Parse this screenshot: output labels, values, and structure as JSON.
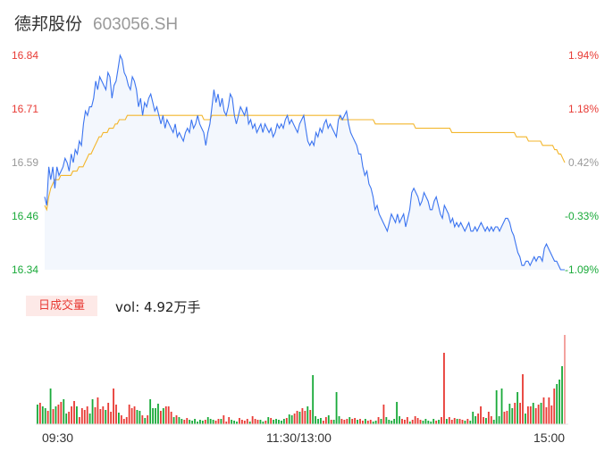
{
  "header": {
    "name": "德邦股份",
    "code": "603056.SH"
  },
  "volume_panel": {
    "tab_label": "日成交量",
    "vol_text": "vol: 4.92万手"
  },
  "colors": {
    "price_line": "#3b74f0",
    "avg_line": "#f3b62c",
    "up": "#e83b35",
    "down": "#1aaa3a",
    "flat": "#999999",
    "area_fill": "#f3f7fd"
  },
  "chart_data": [
    {
      "type": "line",
      "y_left_ticks": [
        "16.84",
        "16.71",
        "16.59",
        "16.46",
        "16.34"
      ],
      "y_right_ticks": [
        "1.94%",
        "1.18%",
        "0.42%",
        "-0.33%",
        "-1.09%"
      ],
      "ylim": [
        16.34,
        16.84
      ],
      "prev_close": 16.52,
      "x_ticks": [
        "09:30",
        "11:30/13:00",
        "15:00"
      ],
      "series": [
        {
          "key": "price",
          "values": [
            16.51,
            16.49,
            16.58,
            16.55,
            16.58,
            16.53,
            16.58,
            16.56,
            16.57,
            16.58,
            16.6,
            16.59,
            16.57,
            16.61,
            16.59,
            16.62,
            16.61,
            16.64,
            16.63,
            16.68,
            16.71,
            16.7,
            16.72,
            16.72,
            16.74,
            16.78,
            16.76,
            16.79,
            16.78,
            16.77,
            16.76,
            16.8,
            16.79,
            16.74,
            16.77,
            16.78,
            16.81,
            16.84,
            16.83,
            16.8,
            16.79,
            16.77,
            16.76,
            16.79,
            16.78,
            16.76,
            16.72,
            16.74,
            16.7,
            16.73,
            16.72,
            16.74,
            16.75,
            16.73,
            16.71,
            16.72,
            16.7,
            16.68,
            16.7,
            16.67,
            16.69,
            16.68,
            16.67,
            16.66,
            16.68,
            16.65,
            16.66,
            16.65,
            16.64,
            16.66,
            16.67,
            16.66,
            16.69,
            16.67,
            16.68,
            16.7,
            16.68,
            16.67,
            16.66,
            16.63,
            16.66,
            16.68,
            16.72,
            16.76,
            16.73,
            16.75,
            16.72,
            16.74,
            16.71,
            16.7,
            16.72,
            16.75,
            16.74,
            16.7,
            16.68,
            16.7,
            16.72,
            16.71,
            16.7,
            16.72,
            16.68,
            16.69,
            16.67,
            16.68,
            16.66,
            16.67,
            16.68,
            16.66,
            16.68,
            16.67,
            16.66,
            16.67,
            16.65,
            16.66,
            16.68,
            16.67,
            16.68,
            16.67,
            16.69,
            16.7,
            16.68,
            16.69,
            16.68,
            16.67,
            16.66,
            16.68,
            16.69,
            16.7,
            16.67,
            16.64,
            16.63,
            16.64,
            16.63,
            16.66,
            16.65,
            16.67,
            16.66,
            16.68,
            16.69,
            16.67,
            16.68,
            16.67,
            16.66,
            16.65,
            16.69,
            16.7,
            16.69,
            16.7,
            16.71,
            16.68,
            16.66,
            16.65,
            16.64,
            16.63,
            16.61,
            16.61,
            16.58,
            16.56,
            16.57,
            16.54,
            16.53,
            16.51,
            16.48,
            16.49,
            16.47,
            16.46,
            16.45,
            16.44,
            16.43,
            16.45,
            16.47,
            16.46,
            16.45,
            16.47,
            16.45,
            16.46,
            16.47,
            16.44,
            16.46,
            16.48,
            16.52,
            16.53,
            16.52,
            16.51,
            16.49,
            16.5,
            16.52,
            16.51,
            16.5,
            16.48,
            16.48,
            16.5,
            16.51,
            16.49,
            16.47,
            16.46,
            16.49,
            16.48,
            16.47,
            16.45,
            16.46,
            16.44,
            16.45,
            16.44,
            16.45,
            16.44,
            16.43,
            16.44,
            16.45,
            16.43,
            16.43,
            16.44,
            16.43,
            16.44,
            16.45,
            16.44,
            16.43,
            16.44,
            16.43,
            16.44,
            16.43,
            16.44,
            16.44,
            16.43,
            16.44,
            16.45,
            16.46,
            16.46,
            16.45,
            16.43,
            16.42,
            16.4,
            16.38,
            16.37,
            16.35,
            16.35,
            16.36,
            16.36,
            16.35,
            16.36,
            16.37,
            16.36,
            16.37,
            16.37,
            16.36,
            16.39,
            16.4,
            16.39,
            16.38,
            16.37,
            16.36,
            16.36,
            16.35,
            16.34,
            16.34,
            16.34
          ]
        },
        {
          "key": "average",
          "values": [
            16.49,
            16.48,
            16.51,
            16.53,
            16.54,
            16.55,
            16.55,
            16.55,
            16.56,
            16.56,
            16.56,
            16.56,
            16.56,
            16.56,
            16.57,
            16.57,
            16.57,
            16.58,
            16.58,
            16.58,
            16.59,
            16.6,
            16.61,
            16.61,
            16.62,
            16.63,
            16.64,
            16.65,
            16.65,
            16.66,
            16.66,
            16.66,
            16.67,
            16.67,
            16.67,
            16.68,
            16.68,
            16.69,
            16.69,
            16.69,
            16.69,
            16.7,
            16.7,
            16.7,
            16.7,
            16.7,
            16.7,
            16.7,
            16.7,
            16.7,
            16.7,
            16.7,
            16.7,
            16.7,
            16.7,
            16.7,
            16.7,
            16.7,
            16.7,
            16.7,
            16.7,
            16.7,
            16.7,
            16.7,
            16.7,
            16.7,
            16.7,
            16.7,
            16.7,
            16.7,
            16.7,
            16.7,
            16.7,
            16.7,
            16.7,
            16.7,
            16.7,
            16.7,
            16.7,
            16.69,
            16.69,
            16.69,
            16.69,
            16.7,
            16.7,
            16.7,
            16.7,
            16.7,
            16.7,
            16.7,
            16.7,
            16.7,
            16.7,
            16.7,
            16.7,
            16.7,
            16.7,
            16.7,
            16.7,
            16.7,
            16.7,
            16.7,
            16.7,
            16.7,
            16.7,
            16.7,
            16.7,
            16.7,
            16.7,
            16.7,
            16.7,
            16.7,
            16.7,
            16.7,
            16.7,
            16.7,
            16.7,
            16.7,
            16.7,
            16.7,
            16.7,
            16.7,
            16.7,
            16.7,
            16.7,
            16.7,
            16.7,
            16.7,
            16.7,
            16.7,
            16.7,
            16.7,
            16.7,
            16.7,
            16.7,
            16.7,
            16.7,
            16.7,
            16.7,
            16.7,
            16.7,
            16.7,
            16.7,
            16.7,
            16.7,
            16.7,
            16.7,
            16.69,
            16.69,
            16.69,
            16.69,
            16.69,
            16.69,
            16.69,
            16.69,
            16.69,
            16.69,
            16.69,
            16.69,
            16.69,
            16.69,
            16.69,
            16.69,
            16.69,
            16.68,
            16.68,
            16.68,
            16.68,
            16.68,
            16.68,
            16.68,
            16.68,
            16.68,
            16.68,
            16.68,
            16.68,
            16.68,
            16.68,
            16.68,
            16.68,
            16.68,
            16.68,
            16.68,
            16.68,
            16.67,
            16.67,
            16.67,
            16.67,
            16.67,
            16.67,
            16.67,
            16.67,
            16.67,
            16.67,
            16.67,
            16.67,
            16.67,
            16.67,
            16.67,
            16.67,
            16.67,
            16.67,
            16.66,
            16.66,
            16.66,
            16.66,
            16.66,
            16.66,
            16.66,
            16.66,
            16.66,
            16.66,
            16.66,
            16.66,
            16.66,
            16.66,
            16.66,
            16.66,
            16.66,
            16.66,
            16.66,
            16.66,
            16.66,
            16.66,
            16.66,
            16.66,
            16.66,
            16.66,
            16.66,
            16.66,
            16.66,
            16.66,
            16.66,
            16.66,
            16.65,
            16.65,
            16.65,
            16.65,
            16.65,
            16.65,
            16.64,
            16.64,
            16.64,
            16.64,
            16.64,
            16.64,
            16.64,
            16.63,
            16.63,
            16.63,
            16.63,
            16.63,
            16.63,
            16.62,
            16.62,
            16.61,
            16.61,
            16.6,
            16.59
          ]
        }
      ]
    },
    {
      "type": "bar",
      "ylim": [
        0,
        100
      ],
      "values": [
        22,
        24,
        20,
        18,
        15,
        40,
        17,
        20,
        22,
        25,
        28,
        12,
        14,
        20,
        26,
        20,
        8,
        18,
        16,
        20,
        12,
        28,
        19,
        30,
        17,
        20,
        16,
        24,
        14,
        40,
        22,
        13,
        10,
        6,
        8,
        22,
        18,
        20,
        16,
        15,
        10,
        7,
        10,
        28,
        18,
        18,
        23,
        15,
        18,
        20,
        20,
        14,
        8,
        10,
        8,
        6,
        5,
        7,
        5,
        4,
        6,
        3,
        5,
        4,
        5,
        8,
        6,
        5,
        4,
        6,
        6,
        10,
        3,
        8,
        5,
        4,
        3,
        7,
        5,
        4,
        6,
        3,
        9,
        6,
        5,
        5,
        3,
        4,
        8,
        7,
        5,
        6,
        5,
        4,
        6,
        7,
        11,
        10,
        12,
        15,
        14,
        18,
        15,
        20,
        16,
        55,
        9,
        6,
        7,
        4,
        8,
        10,
        5,
        5,
        36,
        9,
        6,
        5,
        6,
        8,
        6,
        7,
        5,
        6,
        4,
        6,
        4,
        5,
        3,
        4,
        8,
        6,
        22,
        8,
        5,
        4,
        6,
        25,
        9,
        6,
        5,
        8,
        3,
        5,
        9,
        7,
        5,
        4,
        6,
        4,
        3,
        6,
        4,
        5,
        8,
        80,
        6,
        8,
        5,
        7,
        6,
        6,
        5,
        4,
        6,
        4,
        14,
        9,
        12,
        20,
        8,
        7,
        14,
        9,
        5,
        38,
        9,
        40,
        14,
        15,
        23,
        18,
        24,
        36,
        24,
        56,
        12,
        20,
        20,
        24,
        18,
        22,
        24,
        30,
        19,
        30,
        21,
        40,
        45,
        50,
        65,
        100
      ],
      "directions": [
        "d",
        "u",
        "d",
        "d",
        "u",
        "d",
        "u",
        "d",
        "u",
        "u",
        "d",
        "d",
        "u",
        "u",
        "u",
        "d",
        "u",
        "u",
        "u",
        "u",
        "d",
        "d",
        "u",
        "u",
        "u",
        "u",
        "d",
        "u",
        "u",
        "u",
        "u",
        "d",
        "u",
        "u",
        "u",
        "u",
        "u",
        "u",
        "d",
        "d",
        "u",
        "d",
        "u",
        "d",
        "d",
        "d",
        "d",
        "u",
        "d",
        "u",
        "u",
        "u",
        "d",
        "u",
        "d",
        "d",
        "u",
        "u",
        "d",
        "d",
        "d",
        "d",
        "d",
        "d",
        "u",
        "d",
        "d",
        "d",
        "u",
        "u",
        "d",
        "u",
        "u",
        "u",
        "d",
        "d",
        "d",
        "u",
        "u",
        "u",
        "u",
        "d",
        "u",
        "u",
        "u",
        "d",
        "d",
        "u",
        "d",
        "u",
        "d",
        "d",
        "d",
        "d",
        "d",
        "u",
        "d",
        "d",
        "u",
        "u",
        "d",
        "u",
        "u",
        "d",
        "u",
        "d",
        "d",
        "d",
        "d",
        "u",
        "u",
        "d",
        "u",
        "d",
        "d",
        "d",
        "u",
        "u",
        "u",
        "d",
        "u",
        "u",
        "d",
        "u",
        "u",
        "d",
        "u",
        "u",
        "d",
        "d",
        "u",
        "d",
        "u",
        "d",
        "d",
        "d",
        "d",
        "d",
        "d",
        "u",
        "u",
        "u",
        "d",
        "u",
        "u",
        "u",
        "u",
        "d",
        "d",
        "d",
        "d",
        "d",
        "u",
        "d",
        "u",
        "u",
        "d",
        "u",
        "u",
        "u",
        "d",
        "u",
        "u",
        "d",
        "u",
        "d",
        "d",
        "d",
        "u",
        "u",
        "u",
        "d",
        "u",
        "u",
        "d",
        "d",
        "d",
        "d",
        "u",
        "u",
        "d",
        "d",
        "u",
        "d",
        "u",
        "u",
        "d",
        "u",
        "u",
        "d",
        "u",
        "u",
        "d",
        "u",
        "u",
        "u",
        "u",
        "u"
      ]
    }
  ]
}
